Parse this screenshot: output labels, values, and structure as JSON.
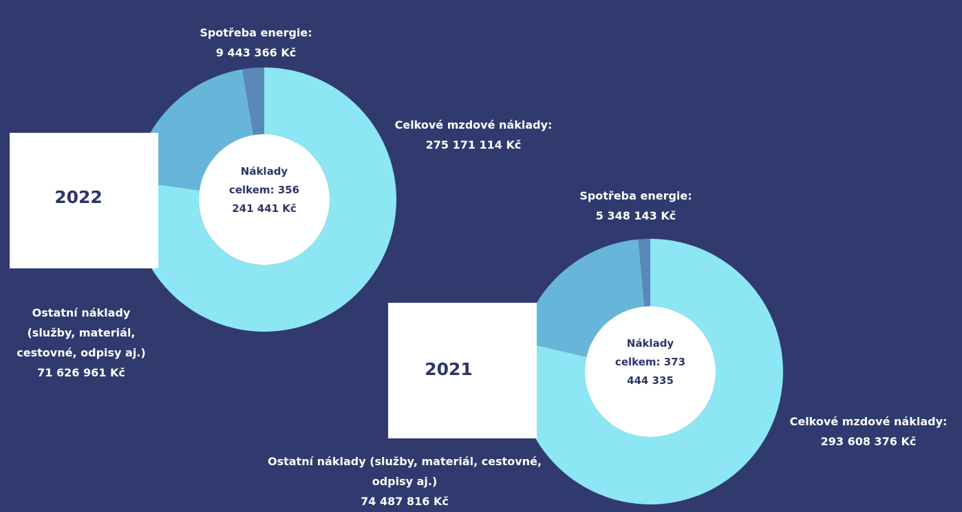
{
  "chart_data": [
    {
      "type": "pie",
      "label": "2022",
      "categories": [
        "Celkové mzdové náklady:",
        "Ostatní náklady (služby, materiál, cestovné, odpisy aj.)",
        "Spotřeba energie:"
      ],
      "values": [
        275171114,
        71626961,
        9443366
      ],
      "value_labels": [
        "275 171 114 Kč",
        "71 626 961 Kč",
        "9 443 366 Kč"
      ],
      "colors": [
        "#8ce6f4",
        "#67b6d9",
        "#5a88b8"
      ],
      "center_title": "Náklady celkem:",
      "total": 356241441,
      "total_label": "356 241 441 Kč"
    },
    {
      "type": "pie",
      "label": "2021",
      "categories": [
        "Celkové mzdové náklady:",
        "Ostatní náklady (služby, materiál, cestovné, odpisy aj.)",
        "Spotřeba energie:"
      ],
      "values": [
        293608376,
        74487816,
        5348143
      ],
      "value_labels": [
        "293 608 376 Kč",
        "74 487 816 Kč",
        "5 348 143 Kč"
      ],
      "colors": [
        "#8ce6f4",
        "#67b6d9",
        "#5a88b8"
      ],
      "center_title": "Náklady celkem:",
      "total": 373444335,
      "total_label": "373 444 335"
    }
  ]
}
